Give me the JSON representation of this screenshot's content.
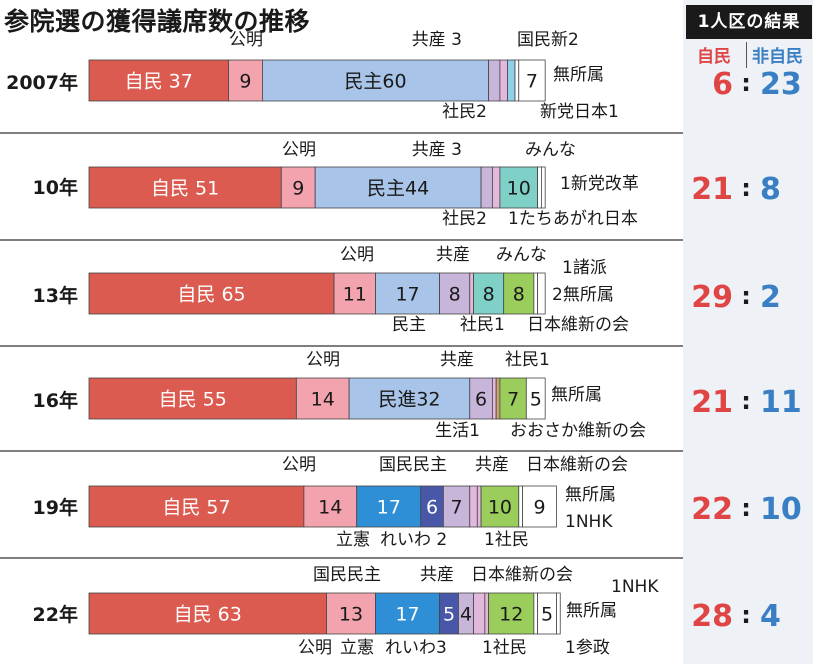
{
  "title": "参院選の獲得議席数の推移",
  "side": {
    "header": "1人区の結果",
    "label_jimin": "自民",
    "label_non": "非自民",
    "color_jimin": "#e04545",
    "color_non": "#3a7fc4"
  },
  "chart_data": {
    "type": "bar",
    "stacked": true,
    "orientation": "horizontal",
    "rows": [
      {
        "year": "2007年",
        "segments": [
          {
            "party": "自民",
            "value": 37,
            "label": "自民 37",
            "color": "#dc5b50"
          },
          {
            "party": "公明",
            "value": 9,
            "label": "9",
            "color": "#f2a3ad"
          },
          {
            "party": "民主",
            "value": 60,
            "label": "民主60",
            "color": "#a8c4e8"
          },
          {
            "party": "共産",
            "value": 3,
            "label": "",
            "color": "#c8b6da"
          },
          {
            "party": "社民",
            "value": 2,
            "label": "",
            "color": "#e3b8dd"
          },
          {
            "party": "国民新",
            "value": 2,
            "label": "",
            "color": "#8fd0ea"
          },
          {
            "party": "新党日本",
            "value": 1,
            "label": "",
            "color": "#ffffff"
          },
          {
            "party": "無所属",
            "value": 7,
            "label": "7",
            "color": "#ffffff"
          }
        ],
        "annotations": [
          "公明",
          "共産 3",
          "国民新2",
          "社民2",
          "新党日本1",
          "無所属"
        ],
        "single_seat": {
          "jimin": "6",
          "non": "23"
        }
      },
      {
        "year": "10年",
        "segments": [
          {
            "party": "自民",
            "value": 51,
            "label": "自民 51",
            "color": "#dc5b50"
          },
          {
            "party": "公明",
            "value": 9,
            "label": "9",
            "color": "#f2a3ad"
          },
          {
            "party": "民主",
            "value": 44,
            "label": "民主44",
            "color": "#a8c4e8"
          },
          {
            "party": "共産",
            "value": 3,
            "label": "",
            "color": "#c8b6da"
          },
          {
            "party": "社民",
            "value": 2,
            "label": "",
            "color": "#e3b8dd"
          },
          {
            "party": "みんな",
            "value": 10,
            "label": "10",
            "color": "#7fd1c7"
          },
          {
            "party": "新党改革",
            "value": 1,
            "label": "",
            "color": "#ffffff"
          },
          {
            "party": "たちあがれ日本",
            "value": 1,
            "label": "",
            "color": "#ffffff"
          }
        ],
        "annotations": [
          "公明",
          "共産 3",
          "みんな",
          "社民2",
          "1新党改革",
          "1たちあがれ日本"
        ],
        "single_seat": {
          "jimin": "21",
          "non": "8"
        }
      },
      {
        "year": "13年",
        "segments": [
          {
            "party": "自民",
            "value": 65,
            "label": "自民 65",
            "color": "#dc5b50"
          },
          {
            "party": "公明",
            "value": 11,
            "label": "11",
            "color": "#f2a3ad"
          },
          {
            "party": "民主",
            "value": 17,
            "label": "17",
            "color": "#a8c4e8"
          },
          {
            "party": "共産",
            "value": 8,
            "label": "8",
            "color": "#c8b6da"
          },
          {
            "party": "社民",
            "value": 1,
            "label": "",
            "color": "#e3b8dd"
          },
          {
            "party": "みんな",
            "value": 8,
            "label": "8",
            "color": "#7fd1c7"
          },
          {
            "party": "日本維新の会",
            "value": 8,
            "label": "8",
            "color": "#9acd5b"
          },
          {
            "party": "諸派",
            "value": 1,
            "label": "",
            "color": "#ffffff"
          },
          {
            "party": "無所属",
            "value": 2,
            "label": "",
            "color": "#ffffff"
          }
        ],
        "annotations": [
          "公明",
          "共産",
          "みんな",
          "民主",
          "社民1",
          "日本維新の会",
          "1諸派",
          "2無所属"
        ],
        "single_seat": {
          "jimin": "29",
          "non": "2"
        }
      },
      {
        "year": "16年",
        "segments": [
          {
            "party": "自民",
            "value": 55,
            "label": "自民 55",
            "color": "#dc5b50"
          },
          {
            "party": "公明",
            "value": 14,
            "label": "14",
            "color": "#f2a3ad"
          },
          {
            "party": "民進",
            "value": 32,
            "label": "民進32",
            "color": "#a8c4e8"
          },
          {
            "party": "共産",
            "value": 6,
            "label": "6",
            "color": "#c8b6da"
          },
          {
            "party": "社民",
            "value": 1,
            "label": "",
            "color": "#e3b8dd"
          },
          {
            "party": "生活",
            "value": 1,
            "label": "",
            "color": "#c9a36e"
          },
          {
            "party": "おおさか維新の会",
            "value": 7,
            "label": "7",
            "color": "#9acd5b"
          },
          {
            "party": "無所属",
            "value": 5,
            "label": "5",
            "color": "#ffffff"
          }
        ],
        "annotations": [
          "公明",
          "共産",
          "社民1",
          "生活1",
          "おおさか維新の会",
          "無所属"
        ],
        "single_seat": {
          "jimin": "21",
          "non": "11"
        }
      },
      {
        "year": "19年",
        "segments": [
          {
            "party": "自民",
            "value": 57,
            "label": "自民 57",
            "color": "#dc5b50"
          },
          {
            "party": "公明",
            "value": 14,
            "label": "14",
            "color": "#f2a3ad"
          },
          {
            "party": "立憲",
            "value": 17,
            "label": "17",
            "color": "#2e8fd6"
          },
          {
            "party": "国民民主",
            "value": 6,
            "label": "6",
            "color": "#4957a8"
          },
          {
            "party": "共産",
            "value": 7,
            "label": "7",
            "color": "#c8b6da"
          },
          {
            "party": "れいわ",
            "value": 2,
            "label": "",
            "color": "#e3b8dd"
          },
          {
            "party": "社民",
            "value": 1,
            "label": "",
            "color": "#e3b8dd"
          },
          {
            "party": "日本維新の会",
            "value": 10,
            "label": "10",
            "color": "#9acd5b"
          },
          {
            "party": "NHK",
            "value": 1,
            "label": "",
            "color": "#ffffff"
          },
          {
            "party": "無所属",
            "value": 9,
            "label": "9",
            "color": "#ffffff"
          }
        ],
        "annotations": [
          "公明",
          "国民民主",
          "共産",
          "日本維新の会",
          "立憲",
          "れいわ 2",
          "1社民",
          "無所属",
          "1NHK"
        ],
        "single_seat": {
          "jimin": "22",
          "non": "10"
        }
      },
      {
        "year": "22年",
        "segments": [
          {
            "party": "自民",
            "value": 63,
            "label": "自民 63",
            "color": "#dc5b50"
          },
          {
            "party": "公明",
            "value": 13,
            "label": "13",
            "color": "#f2a3ad"
          },
          {
            "party": "立憲",
            "value": 17,
            "label": "17",
            "color": "#2e8fd6"
          },
          {
            "party": "国民民主",
            "value": 5,
            "label": "5",
            "color": "#4957a8"
          },
          {
            "party": "共産",
            "value": 4,
            "label": "4",
            "color": "#c8b6da"
          },
          {
            "party": "れいわ",
            "value": 3,
            "label": "",
            "color": "#e3b8dd"
          },
          {
            "party": "社民",
            "value": 1,
            "label": "",
            "color": "#e3b8dd"
          },
          {
            "party": "日本維新の会",
            "value": 12,
            "label": "12",
            "color": "#9acd5b"
          },
          {
            "party": "NHK",
            "value": 1,
            "label": "",
            "color": "#ffffff"
          },
          {
            "party": "無所属",
            "value": 5,
            "label": "5",
            "color": "#ffffff"
          },
          {
            "party": "参政",
            "value": 1,
            "label": "",
            "color": "#ffffff"
          }
        ],
        "annotations": [
          "国民民主",
          "共産",
          "日本維新の会",
          "1NHK",
          "無所属",
          "公明",
          "立憲",
          "れいわ3",
          "1社民",
          "1参政"
        ],
        "single_seat": {
          "jimin": "28",
          "non": "4"
        }
      }
    ]
  }
}
